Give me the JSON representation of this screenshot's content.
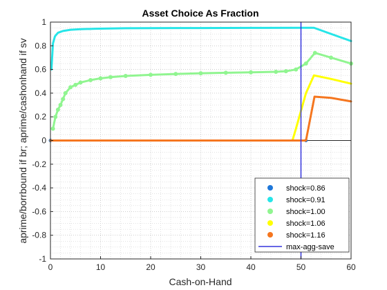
{
  "chart_data": {
    "type": "line",
    "title": "Asset Choice As Fraction",
    "xlabel": "Cash-on-Hand",
    "ylabel": "aprime/borrbound if br; aprime/cashonhand if sv",
    "xlim": [
      0,
      60
    ],
    "ylim": [
      -1,
      1
    ],
    "x_ticks": [
      "0",
      "10",
      "20",
      "30",
      "40",
      "50",
      "60"
    ],
    "y_ticks": [
      "-1",
      "-0.8",
      "-0.6",
      "-0.4",
      "-0.2",
      "0",
      "0.2",
      "0.4",
      "0.6",
      "0.8",
      "1"
    ],
    "grid": "minor dotted",
    "legend_position": "bottom-right",
    "series": [
      {
        "name": "shock=0.86",
        "color": "#1F77D9",
        "style": "markers",
        "points": [
          [
            0,
            0
          ],
          [
            51,
            0
          ]
        ]
      },
      {
        "name": "shock=0.91",
        "color": "#26E5E8",
        "style": "line",
        "points": [
          [
            0.2,
            0.6
          ],
          [
            0.5,
            0.82
          ],
          [
            0.9,
            0.88
          ],
          [
            1.5,
            0.91
          ],
          [
            2.5,
            0.925
          ],
          [
            4,
            0.935
          ],
          [
            6,
            0.94
          ],
          [
            9,
            0.944
          ],
          [
            12,
            0.946
          ],
          [
            15,
            0.948
          ],
          [
            20,
            0.949
          ],
          [
            30,
            0.95
          ],
          [
            40,
            0.951
          ],
          [
            50,
            0.952
          ],
          [
            52.6,
            0.952
          ],
          [
            56,
            0.9
          ],
          [
            60,
            0.84
          ]
        ]
      },
      {
        "name": "shock=1.00",
        "color": "#90F590",
        "style": "line-markers",
        "points": [
          [
            0.5,
            0.1
          ],
          [
            1,
            0.2
          ],
          [
            1.5,
            0.26
          ],
          [
            2,
            0.3
          ],
          [
            2.5,
            0.35
          ],
          [
            3,
            0.4
          ],
          [
            4,
            0.45
          ],
          [
            5,
            0.47
          ],
          [
            6,
            0.49
          ],
          [
            8,
            0.51
          ],
          [
            10,
            0.525
          ],
          [
            12,
            0.535
          ],
          [
            15,
            0.545
          ],
          [
            20,
            0.555
          ],
          [
            25,
            0.562
          ],
          [
            30,
            0.568
          ],
          [
            35,
            0.572
          ],
          [
            40,
            0.576
          ],
          [
            45,
            0.58
          ],
          [
            47,
            0.585
          ],
          [
            49,
            0.6
          ],
          [
            51,
            0.65
          ],
          [
            52.8,
            0.74
          ],
          [
            56,
            0.7
          ],
          [
            60,
            0.65
          ]
        ]
      },
      {
        "name": "shock=1.06",
        "color": "#FFFF00",
        "style": "line",
        "points": [
          [
            0,
            0
          ],
          [
            48.3,
            0
          ],
          [
            49,
            0.1
          ],
          [
            50,
            0.25
          ],
          [
            51,
            0.4
          ],
          [
            52.6,
            0.55
          ],
          [
            56,
            0.52
          ],
          [
            60,
            0.48
          ]
        ]
      },
      {
        "name": "shock=1.16",
        "color": "#F5761F",
        "style": "line",
        "points": [
          [
            0,
            0
          ],
          [
            51,
            0
          ],
          [
            52.7,
            0.37
          ],
          [
            56,
            0.36
          ],
          [
            60,
            0.33
          ]
        ]
      },
      {
        "name": "max-agg-save",
        "color": "#3333DD",
        "style": "vertical-line",
        "points": [
          [
            50,
            -1
          ],
          [
            50,
            1
          ]
        ]
      }
    ]
  }
}
